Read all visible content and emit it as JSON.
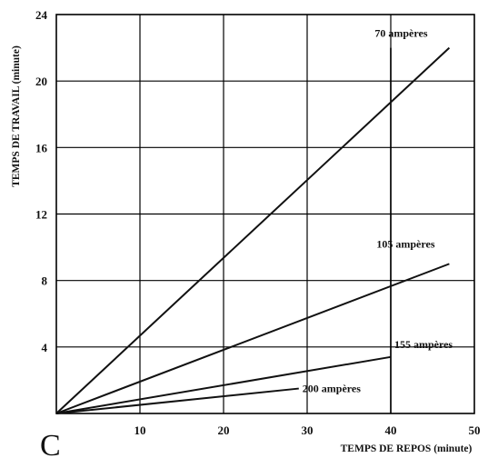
{
  "panel_label": "C",
  "chart_data": {
    "type": "line",
    "xlabel": "TEMPS DE REPOS (minute)",
    "ylabel": "TEMPS DE TRAVAIL (minute)",
    "xlim": [
      0,
      50
    ],
    "ylim": [
      0,
      24
    ],
    "xticks": [
      10,
      20,
      30,
      40,
      50
    ],
    "yticks": [
      4,
      8,
      12,
      16,
      20,
      24
    ],
    "grid": true,
    "reference_line_x": 40,
    "series": [
      {
        "name": "70 ampères",
        "x": [
          0,
          47
        ],
        "y": [
          0,
          22.0
        ]
      },
      {
        "name": "105 ampères",
        "x": [
          0,
          47
        ],
        "y": [
          0,
          9.0
        ]
      },
      {
        "name": "155 ampères",
        "x": [
          0,
          40
        ],
        "y": [
          0,
          3.4
        ]
      },
      {
        "name": "200 ampères",
        "x": [
          0,
          29
        ],
        "y": [
          0,
          1.5
        ]
      }
    ]
  }
}
